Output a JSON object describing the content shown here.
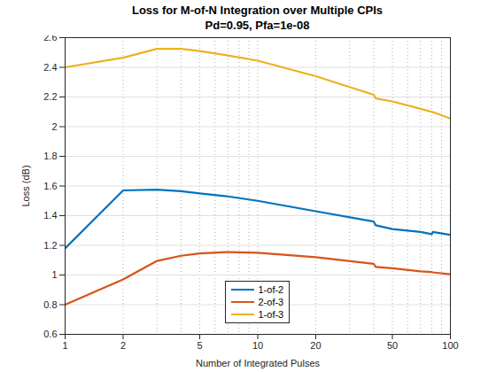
{
  "chart_data": {
    "type": "line",
    "title": "Loss for M-of-N Integration over Multiple CPIs",
    "subtitle": "Pd=0.95,  Pfa=1e-08",
    "x_label": "Number of Integrated Pulses",
    "y_label": "Loss (dB)",
    "x": [
      1,
      2,
      3,
      4,
      5,
      7,
      10,
      20,
      40,
      41,
      50,
      70,
      80,
      81,
      100
    ],
    "series": [
      {
        "name": "1-of-2",
        "color": "#0072BD",
        "line_style": "solid",
        "values": [
          1.18,
          1.57,
          1.575,
          1.565,
          1.55,
          1.53,
          1.5,
          1.43,
          1.36,
          1.335,
          1.31,
          1.29,
          1.275,
          1.29,
          1.27
        ]
      },
      {
        "name": "2-of-3",
        "color": "#D95319",
        "line_style": "solid",
        "values": [
          0.8,
          0.97,
          1.095,
          1.13,
          1.145,
          1.155,
          1.15,
          1.12,
          1.075,
          1.055,
          1.045,
          1.025,
          1.02,
          1.018,
          1.005
        ]
      },
      {
        "name": "1-of-3",
        "color": "#EDB120",
        "line_style": "solid",
        "values": [
          2.4,
          2.465,
          2.525,
          2.525,
          2.51,
          2.48,
          2.445,
          2.34,
          2.215,
          2.19,
          2.17,
          2.12,
          2.1,
          2.098,
          2.055
        ]
      }
    ],
    "xlim": [
      1,
      100
    ],
    "ylim": [
      0.6,
      2.6
    ],
    "xticks": [
      1,
      2,
      5,
      10,
      20,
      50,
      100
    ],
    "yticks": [
      0.6,
      0.8,
      1,
      1.2,
      1.4,
      1.6,
      1.8,
      2,
      2.2,
      2.4,
      2.6
    ],
    "log": "x",
    "grid": true,
    "legend": "bottom"
  }
}
